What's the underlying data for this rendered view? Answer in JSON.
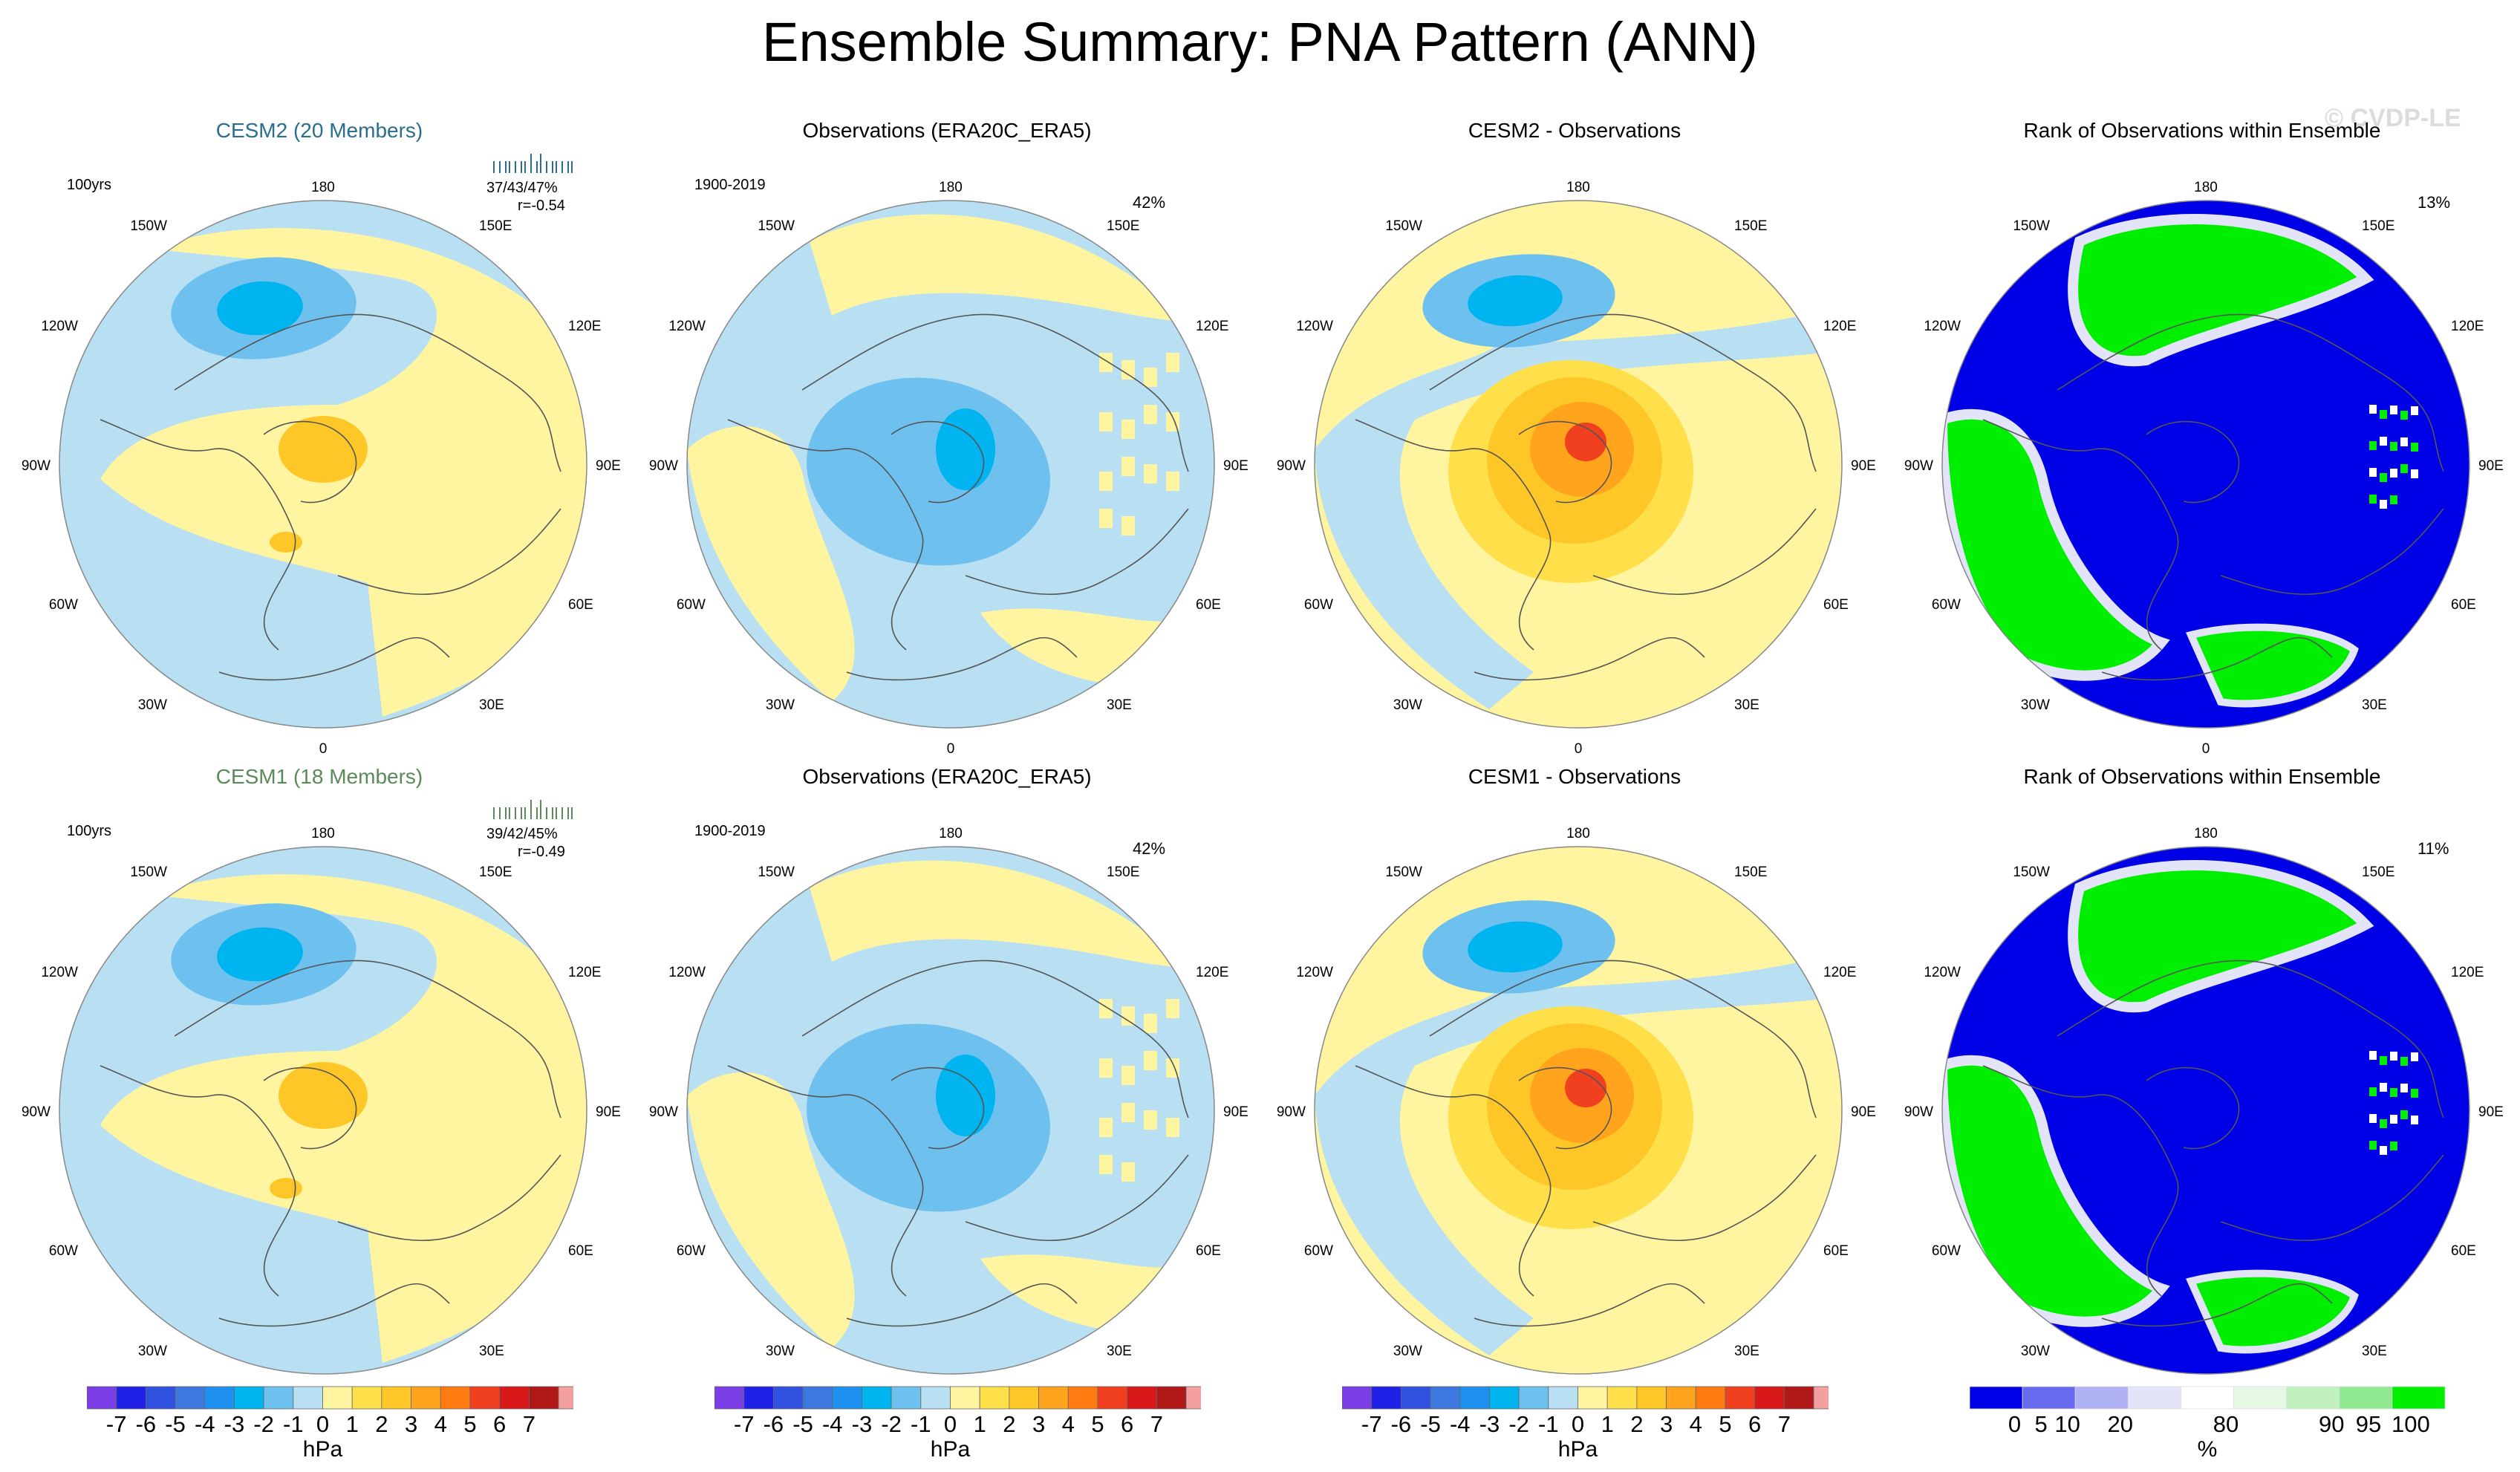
{
  "title": "Ensemble Summary: PNA Pattern (ANN)",
  "watermark": "© CVDP-LE",
  "colors": {
    "neg7": "#7b3ee6",
    "neg6": "#2020e6",
    "neg5": "#3050e0",
    "neg4": "#3c78e0",
    "neg3": "#1e90f0",
    "neg2": "#00b4f0",
    "neg1": "#6ec0ee",
    "neg0": "#b8dff2",
    "pos0": "#fff5a0",
    "pos1": "#ffe04a",
    "pos2": "#ffc628",
    "pos3": "#ffa41c",
    "pos4": "#ff7a10",
    "pos5": "#f04020",
    "pos6": "#d81818",
    "pos7": "#b01818",
    "pos8": "#f4a0a0",
    "rank_low": "#0000e6",
    "rank_5": "#6a6aee",
    "rank_10": "#b0b0f4",
    "rank_20": "#e4e4f8",
    "rank_mid": "#ffffff",
    "rank_80": "#e4f8e4",
    "rank_90": "#c0f0c0",
    "rank_95": "#90e890",
    "rank_high": "#00ee00"
  },
  "panels": [
    {
      "title": "CESM2 (20 Members)",
      "left_note": "100yrs",
      "stats": "37/43/47%",
      "corr": "r=-0.54",
      "kind": "model"
    },
    {
      "title": "Observations (ERA20C_ERA5)",
      "left_note": "1900-2019",
      "right_note": "42%",
      "kind": "obs"
    },
    {
      "title": "CESM2 - Observations",
      "kind": "diff"
    },
    {
      "title": "Rank of Observations within Ensemble",
      "right_note": "13%",
      "kind": "rank"
    },
    {
      "title": "CESM1 (18 Members)",
      "left_note": "100yrs",
      "stats": "39/42/45%",
      "corr": "r=-0.49",
      "kind": "model"
    },
    {
      "title": "Observations (ERA20C_ERA5)",
      "left_note": "1900-2019",
      "right_note": "42%",
      "kind": "obs"
    },
    {
      "title": "CESM1 - Observations",
      "kind": "diff"
    },
    {
      "title": "Rank of Observations within Ensemble",
      "right_note": "11%",
      "kind": "rank"
    }
  ],
  "lon_labels": {
    "top": "180",
    "bottom": "0",
    "l150": "150W",
    "l120": "120W",
    "l90": "90W",
    "l60": "60W",
    "l30": "30W",
    "r150": "150E",
    "r120": "120E",
    "r90": "90E",
    "r60": "60E",
    "r30": "30E"
  },
  "colorbar": {
    "labels": [
      "-7",
      "-6",
      "-5",
      "-4",
      "-3",
      "-2",
      "-1",
      "0",
      "1",
      "2",
      "3",
      "4",
      "5",
      "6",
      "7"
    ],
    "unit": "hPa"
  },
  "rank_colorbar": {
    "labels": [
      "0",
      "5",
      "10",
      "20",
      "80",
      "90",
      "95",
      "100"
    ],
    "unit": "%"
  },
  "chart_data": [
    {
      "type": "heatmap",
      "title": "CESM2 (20 Members)",
      "units": "hPa",
      "pattern": "PNA",
      "season": "ANN",
      "range": [
        -7,
        7
      ],
      "members": 20,
      "record": "100yrs",
      "pct_explained": [
        37,
        43,
        47
      ],
      "pattern_corr": -0.54
    },
    {
      "type": "heatmap",
      "title": "Observations (ERA20C_ERA5)",
      "units": "hPa",
      "period": "1900-2019",
      "pct_explained": 42
    },
    {
      "type": "heatmap",
      "title": "CESM2 - Observations",
      "units": "hPa"
    },
    {
      "type": "heatmap",
      "title": "Rank of Observations within Ensemble",
      "units": "%",
      "rank_pct": 13
    },
    {
      "type": "heatmap",
      "title": "CESM1 (18 Members)",
      "units": "hPa",
      "members": 18,
      "record": "100yrs",
      "pct_explained": [
        39,
        42,
        45
      ],
      "pattern_corr": -0.49
    },
    {
      "type": "heatmap",
      "title": "Observations (ERA20C_ERA5)",
      "units": "hPa",
      "period": "1900-2019",
      "pct_explained": 42
    },
    {
      "type": "heatmap",
      "title": "CESM1 - Observations",
      "units": "hPa"
    },
    {
      "type": "heatmap",
      "title": "Rank of Observations within Ensemble",
      "units": "%",
      "rank_pct": 11
    }
  ]
}
